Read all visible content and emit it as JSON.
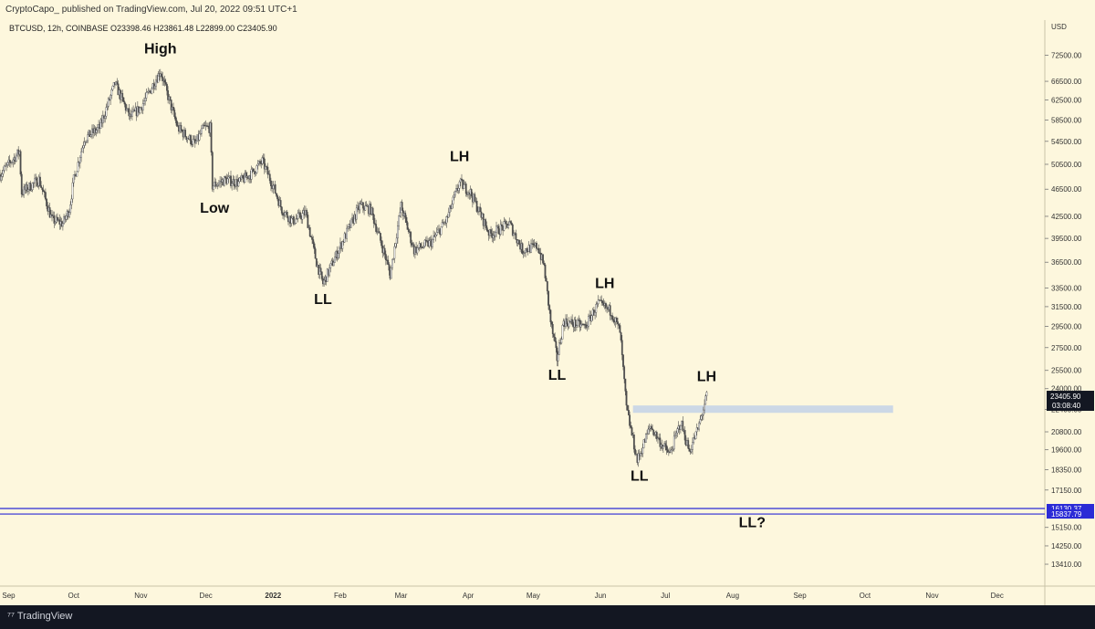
{
  "header": {
    "publish_line": "CryptoCapo_ published on TradingView.com, Jul 20, 2022 09:51 UTC+1"
  },
  "footer": {
    "brand": "TradingView"
  },
  "chart_data": {
    "type": "candlestick",
    "symbol_line": "BTCUSD, 12h, COINBASE  O23398.46  H23861.48  L22899.00  C23405.90",
    "currency": "USD",
    "y_scale": "log",
    "ylim": [
      12700,
      80000
    ],
    "y_ticks": [
      72500,
      66500,
      62500,
      58500,
      54500,
      50500,
      46500,
      42500,
      39500,
      36500,
      33500,
      31500,
      29500,
      27500,
      25500,
      24000,
      22400,
      20800,
      19600,
      18350,
      17150,
      15150,
      14250,
      13410
    ],
    "y_tick_labels": [
      "72500.00",
      "66500.00",
      "62500.00",
      "58500.00",
      "54500.00",
      "50500.00",
      "46500.00",
      "42500.00",
      "39500.00",
      "36500.00",
      "33500.00",
      "31500.00",
      "29500.00",
      "27500.00",
      "25500.00",
      "24000.00",
      "22400.00",
      "20800.00",
      "19600.00",
      "18350.00",
      "17150.00",
      "15150.00",
      "14250.00",
      "13410.00"
    ],
    "x_labels": [
      "Sep",
      "Oct",
      "Nov",
      "Dec",
      "2022",
      "Feb",
      "Mar",
      "Apr",
      "May",
      "Jun",
      "Jul",
      "Aug",
      "Sep",
      "Oct",
      "Nov",
      "Dec"
    ],
    "x_label_dates": [
      "2021-09-01",
      "2021-10-01",
      "2021-11-01",
      "2021-12-01",
      "2022-01-01",
      "2022-02-01",
      "2022-03-01",
      "2022-04-01",
      "2022-05-01",
      "2022-06-01",
      "2022-07-01",
      "2022-08-01",
      "2022-09-01",
      "2022-10-01",
      "2022-11-01",
      "2022-12-01"
    ],
    "x_range": [
      "2021-08-28",
      "2022-12-23"
    ],
    "price_path": [
      [
        "2021-08-28",
        48800
      ],
      [
        "2021-09-06",
        52700
      ],
      [
        "2021-09-07",
        46000
      ],
      [
        "2021-09-15",
        48000
      ],
      [
        "2021-09-21",
        42000
      ],
      [
        "2021-09-26",
        41500
      ],
      [
        "2021-09-29",
        43500
      ],
      [
        "2021-10-01",
        48000
      ],
      [
        "2021-10-06",
        55000
      ],
      [
        "2021-10-13",
        57000
      ],
      [
        "2021-10-20",
        66000
      ],
      [
        "2021-10-27",
        59000
      ],
      [
        "2021-11-01",
        61000
      ],
      [
        "2021-11-10",
        68800
      ],
      [
        "2021-11-13",
        64000
      ],
      [
        "2021-11-18",
        57000
      ],
      [
        "2021-11-26",
        54000
      ],
      [
        "2021-11-30",
        57000
      ],
      [
        "2021-12-03",
        57000
      ],
      [
        "2021-12-04",
        47000
      ],
      [
        "2021-12-10",
        48000
      ],
      [
        "2021-12-16",
        47500
      ],
      [
        "2021-12-22",
        49000
      ],
      [
        "2021-12-27",
        51000
      ],
      [
        "2022-01-01",
        47000
      ],
      [
        "2022-01-05",
        43500
      ],
      [
        "2022-01-10",
        41800
      ],
      [
        "2022-01-16",
        43000
      ],
      [
        "2022-01-21",
        36500
      ],
      [
        "2022-01-24",
        34000
      ],
      [
        "2022-02-01",
        38500
      ],
      [
        "2022-02-10",
        44000
      ],
      [
        "2022-02-15",
        43500
      ],
      [
        "2022-02-22",
        37000
      ],
      [
        "2022-02-24",
        35000
      ],
      [
        "2022-03-01",
        44000
      ],
      [
        "2022-03-07",
        38000
      ],
      [
        "2022-03-15",
        39000
      ],
      [
        "2022-03-22",
        42000
      ],
      [
        "2022-03-28",
        47500
      ],
      [
        "2022-04-02",
        46000
      ],
      [
        "2022-04-11",
        40000
      ],
      [
        "2022-04-20",
        41500
      ],
      [
        "2022-04-26",
        38000
      ],
      [
        "2022-05-03",
        38500
      ],
      [
        "2022-05-06",
        36000
      ],
      [
        "2022-05-09",
        30000
      ],
      [
        "2022-05-12",
        26500
      ],
      [
        "2022-05-15",
        30000
      ],
      [
        "2022-05-25",
        29500
      ],
      [
        "2022-05-31",
        31800
      ],
      [
        "2022-06-06",
        31000
      ],
      [
        "2022-06-10",
        29000
      ],
      [
        "2022-06-13",
        22500
      ],
      [
        "2022-06-18",
        18900
      ],
      [
        "2022-06-24",
        21200
      ],
      [
        "2022-06-29",
        20000
      ],
      [
        "2022-07-03",
        19300
      ],
      [
        "2022-07-08",
        21500
      ],
      [
        "2022-07-12",
        19500
      ],
      [
        "2022-07-16",
        21000
      ],
      [
        "2022-07-20",
        23400
      ]
    ],
    "price_label": {
      "value": "23405.90",
      "countdown": "03:08:40"
    },
    "hidden_tick_label": "22400.00",
    "resistance_zone": {
      "from": "2022-06-16",
      "to": "2022-10-14",
      "low": 22150,
      "high": 22700,
      "color": "#ccd8e6"
    },
    "horizontal_lines": [
      {
        "price": 16130.37,
        "label": "16130.37",
        "color": "#2b2bd6"
      },
      {
        "price": 15837.79,
        "label": "15837.79",
        "color": "#2b2bd6"
      }
    ],
    "annotations": [
      {
        "text": "High",
        "x": "2021-11-10",
        "y": 73000
      },
      {
        "text": "Low",
        "x": "2021-12-05",
        "y": 43000
      },
      {
        "text": "LL",
        "x": "2022-01-24",
        "y": 31800
      },
      {
        "text": "LH",
        "x": "2022-03-28",
        "y": 51000
      },
      {
        "text": "LH",
        "x": "2022-06-03",
        "y": 33500
      },
      {
        "text": "LL",
        "x": "2022-05-12",
        "y": 24700
      },
      {
        "text": "LH",
        "x": "2022-07-20",
        "y": 24600
      },
      {
        "text": "LL",
        "x": "2022-06-19",
        "y": 17700
      },
      {
        "text": "LL?",
        "x": "2022-08-10",
        "y": 15150
      }
    ],
    "colors": {
      "background": "#fdf7dd",
      "candles": "#4d4d4d",
      "price_label_bg": "#131722"
    }
  }
}
